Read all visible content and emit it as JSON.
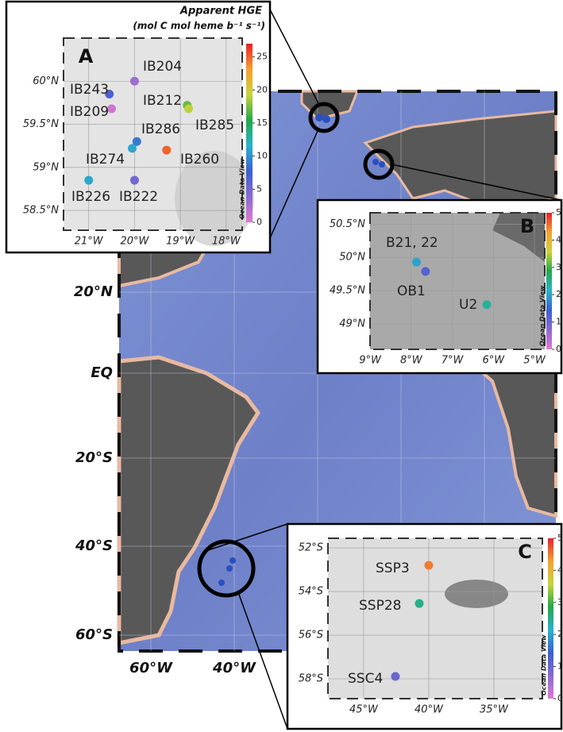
{
  "main_map": {
    "lat_labels": [
      "20°N",
      "EQ",
      "20°S",
      "40°S",
      "60°S"
    ],
    "lon_labels": [
      "60°W",
      "40°W"
    ]
  },
  "colormap": [
    "#e27ad0",
    "#8a6ad0",
    "#3b5fd0",
    "#2ab3cc",
    "#22a84a",
    "#c9d43a",
    "#f5a030",
    "#e8202a"
  ],
  "insets": [
    {
      "letter": "A",
      "title": "Apparent HGE",
      "units": "(mol C mol heme b⁻¹ s⁻¹)",
      "colorbar_label": "Ocean Data View",
      "clim": [
        0,
        27
      ],
      "cticks": [
        0,
        5,
        10,
        15,
        20,
        25
      ],
      "xlim": [
        -21.55,
        -17.65
      ],
      "ylim": [
        58.27,
        60.5
      ],
      "xticks": [
        {
          "value": -21,
          "label": "21°W"
        },
        {
          "value": -20,
          "label": "20°W"
        },
        {
          "value": -19,
          "label": "19°W"
        },
        {
          "value": -18,
          "label": "18°W"
        }
      ],
      "yticks": [
        {
          "value": 60,
          "label": "60°N"
        },
        {
          "value": 59.5,
          "label": "59.5°N"
        },
        {
          "value": 59,
          "label": "59°N"
        },
        {
          "value": 58.5,
          "label": "58.5°N"
        }
      ],
      "points": [
        {
          "label": "IB204",
          "lon": -20,
          "lat": 60,
          "value": 3
        },
        {
          "label": "IB243",
          "lon": -20.55,
          "lat": 59.85,
          "value": 7
        },
        {
          "label": "IB209",
          "lon": -20.5,
          "lat": 59.68,
          "value": 1
        },
        {
          "label": "IB212",
          "lon": -18.85,
          "lat": 59.72,
          "value": 17
        },
        {
          "label": "IB285",
          "lon": -18.82,
          "lat": 59.68,
          "value": 19
        },
        {
          "label": "IB286",
          "lon": -19.95,
          "lat": 59.3,
          "value": 9
        },
        {
          "label": "IB274",
          "lon": -20.05,
          "lat": 59.22,
          "value": 11
        },
        {
          "label": "IB260",
          "lon": -19.3,
          "lat": 59.2,
          "value": 25
        },
        {
          "label": "IB226",
          "lon": -21,
          "lat": 58.85,
          "value": 11
        },
        {
          "label": "IB222",
          "lon": -20,
          "lat": 58.85,
          "value": 5
        }
      ]
    },
    {
      "letter": "B",
      "colorbar_label": "Ocean Data View",
      "clim": [
        0,
        5
      ],
      "cticks": [
        0,
        1,
        2,
        3,
        4,
        5
      ],
      "xlim": [
        -9,
        -4.75
      ],
      "ylim": [
        48.62,
        50.67
      ],
      "xticks": [
        {
          "value": -9,
          "label": "9°W"
        },
        {
          "value": -8,
          "label": "8°W"
        },
        {
          "value": -7,
          "label": "7°W"
        },
        {
          "value": -6,
          "label": "6°W"
        },
        {
          "value": -5,
          "label": "5°W"
        }
      ],
      "yticks": [
        {
          "value": 50.5,
          "label": "50.5°N"
        },
        {
          "value": 50,
          "label": "50°N"
        },
        {
          "value": 49.5,
          "label": "49.5°N"
        },
        {
          "value": 49,
          "label": "49°N"
        }
      ],
      "points": [
        {
          "label": "B21, 22",
          "lon": -7.87,
          "lat": 49.93,
          "value": 2
        },
        {
          "label": "OB1",
          "lon": -7.65,
          "lat": 49.79,
          "value": 1.2
        },
        {
          "label": "U2",
          "lon": -6.16,
          "lat": 49.29,
          "value": 2.4
        }
      ]
    },
    {
      "letter": "C",
      "colorbar_label": "Ocean Data View",
      "clim": [
        0,
        5
      ],
      "cticks": [
        0,
        1,
        2,
        3,
        4,
        5
      ],
      "xlim": [
        -47.74,
        -31.28
      ],
      "ylim": [
        -58.91,
        -51.56
      ],
      "xticks": [
        {
          "value": -45,
          "label": "45°W"
        },
        {
          "value": -40,
          "label": "40°W"
        },
        {
          "value": -35,
          "label": "35°W"
        }
      ],
      "yticks": [
        {
          "value": -52,
          "label": "52°S"
        },
        {
          "value": -54,
          "label": "54°S"
        },
        {
          "value": -56,
          "label": "56°S"
        },
        {
          "value": -58,
          "label": "58°S"
        }
      ],
      "points": [
        {
          "label": "SSP3",
          "lon": -40,
          "lat": -52.8,
          "value": 4.5
        },
        {
          "label": "SSP28",
          "lon": -40.73,
          "lat": -54.55,
          "value": 2.5
        },
        {
          "label": "SSC4",
          "lon": -42.56,
          "lat": -57.89,
          "value": 1
        }
      ]
    }
  ]
}
